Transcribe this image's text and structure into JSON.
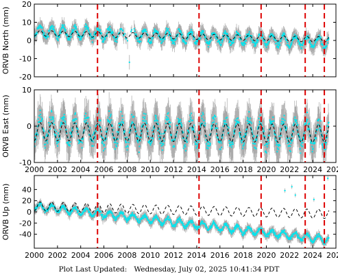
{
  "footer": {
    "label": "Plot Last Updated:",
    "date": "Wednesday, July 02, 2025 10:41:34 PDT"
  },
  "colors": {
    "data": "#00e5ee",
    "error_bars": "#a9a9a9",
    "model": "#000000",
    "breaks": "#dd0000",
    "axes": "#000000"
  },
  "chart_data": [
    {
      "type": "scatter",
      "ylabel": "ORVB North (mm)",
      "xlim": [
        2000,
        2026
      ],
      "ylim": [
        -20,
        20
      ],
      "xticks": [
        2000,
        2002,
        2004,
        2006,
        2008,
        2010,
        2012,
        2014,
        2016,
        2018,
        2020,
        2022,
        2024,
        2026
      ],
      "yticks": [
        -20,
        -10,
        0,
        10,
        20
      ],
      "show_xtick_labels": false,
      "grid": false,
      "series": [
        {
          "values": {
            "start": 2000.0,
            "end": 2025.4,
            "trend_start": 5.0,
            "trend_end": -1.0,
            "seasonal_amplitude": 3.0,
            "error_bar": 4.0
          }
        },
        {
          "values": {
            "start": 2000.0,
            "end": 2025.4,
            "trend_start": 4.0,
            "trend_end": 0.5,
            "seasonal_amplitude": 1.5
          }
        }
      ],
      "outliers": [
        {
          "x": 2008.2,
          "y": -12
        }
      ],
      "breaks": [
        2005.45,
        2014.2,
        2019.55,
        2023.35,
        2025.0
      ]
    },
    {
      "type": "scatter",
      "ylabel": "ORVB East (mm)",
      "xlim": [
        2000,
        2026
      ],
      "ylim": [
        -10,
        10
      ],
      "xticks": [
        2000,
        2002,
        2004,
        2006,
        2008,
        2010,
        2012,
        2014,
        2016,
        2018,
        2020,
        2022,
        2024,
        2026
      ],
      "yticks": [
        -10,
        0,
        10
      ],
      "show_xtick_labels": true,
      "grid": false,
      "series": [
        {
          "values": {
            "start": 2000.0,
            "end": 2025.4,
            "trend_start": -1.0,
            "trend_end": -2.0,
            "seasonal_amplitude": 3.5,
            "error_bar": 4.5
          }
        },
        {
          "values": {
            "start": 2000.0,
            "end": 2025.4,
            "trend_start": -1.5,
            "trend_end": -2.0,
            "seasonal_amplitude": 2.5
          }
        }
      ],
      "breaks": [
        2005.45,
        2014.2,
        2019.55,
        2023.35,
        2025.0
      ]
    },
    {
      "type": "scatter",
      "ylabel": "ORVB Up (mm)",
      "xlim": [
        2000,
        2026
      ],
      "ylim": [
        -65,
        65
      ],
      "xticks": [
        2000,
        2002,
        2004,
        2006,
        2008,
        2010,
        2012,
        2014,
        2016,
        2018,
        2020,
        2022,
        2024,
        2026
      ],
      "yticks": [
        -40,
        -20,
        0,
        20,
        40
      ],
      "show_xtick_labels": true,
      "grid": false,
      "series": [
        {
          "values": {
            "start": 2000.0,
            "end": 2025.4,
            "trend_start": 10.0,
            "trend_end": -50.0,
            "seasonal_amplitude": 6.0,
            "error_bar": 8.0
          }
        },
        {
          "values": {
            "start": 2000.0,
            "end": 2025.4,
            "trend_start": 10.0,
            "trend_end": -4.0,
            "seasonal_amplitude": 8.0
          }
        }
      ],
      "outliers": [
        {
          "x": 2021.6,
          "y": 38
        },
        {
          "x": 2022.2,
          "y": 45
        },
        {
          "x": 2022.5,
          "y": 30
        },
        {
          "x": 2024.1,
          "y": 22
        },
        {
          "x": 2025.3,
          "y": 60
        }
      ],
      "breaks": [
        2005.45,
        2014.2,
        2019.55,
        2023.35,
        2025.0
      ]
    }
  ]
}
